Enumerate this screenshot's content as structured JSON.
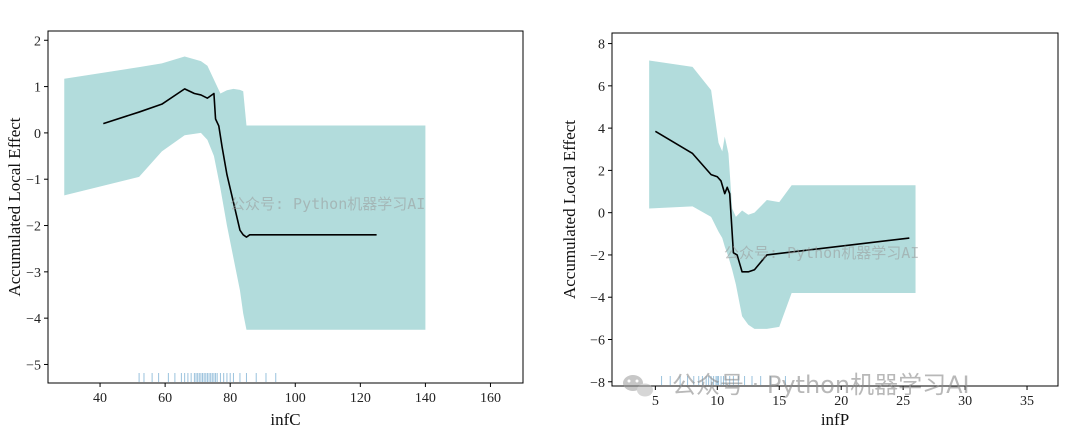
{
  "chart_data": [
    {
      "type": "line",
      "xlabel": "infC",
      "ylabel": "Accumulated Local Effect",
      "xlim": [
        24,
        170
      ],
      "ylim": [
        -5.4,
        2.2
      ],
      "xticks": [
        40,
        60,
        80,
        100,
        120,
        140,
        160
      ],
      "yticks": [
        2,
        1,
        0,
        -1,
        -2,
        -3,
        -4,
        -5
      ],
      "line_color": "#000000",
      "band_color": "#b2dcdc",
      "line": {
        "x": [
          41,
          52,
          59,
          66,
          69,
          71,
          73,
          75,
          75.5,
          76.5,
          77.5,
          79,
          81,
          83,
          84,
          85,
          86,
          125
        ],
        "y": [
          0.2,
          0.45,
          0.62,
          0.95,
          0.85,
          0.82,
          0.75,
          0.85,
          0.3,
          0.15,
          -0.3,
          -0.9,
          -1.5,
          -2.1,
          -2.2,
          -2.25,
          -2.2,
          -2.2
        ]
      },
      "band": {
        "x": [
          29,
          52,
          59,
          66,
          71,
          73,
          75,
          77,
          79,
          81,
          83,
          84,
          85,
          140
        ],
        "upper": [
          1.17,
          1.42,
          1.5,
          1.65,
          1.55,
          1.45,
          1.15,
          0.85,
          0.92,
          0.95,
          0.93,
          0.9,
          0.16,
          0.16
        ],
        "lower": [
          -1.35,
          -0.95,
          -0.4,
          -0.05,
          0.0,
          -0.15,
          -0.5,
          -1.2,
          -2.0,
          -2.7,
          -3.4,
          -3.9,
          -4.25,
          -4.25
        ]
      },
      "rug": [
        52,
        53.5,
        56,
        58,
        61,
        63,
        65,
        66,
        67,
        68,
        69,
        69.5,
        70,
        70.5,
        71,
        71.5,
        72,
        72.5,
        73,
        73.5,
        74,
        74.5,
        75,
        75.5,
        76,
        77,
        78,
        79,
        80,
        81,
        83,
        85,
        88,
        91,
        94
      ]
    },
    {
      "type": "line",
      "xlabel": "infP",
      "ylabel": "Accumulated Local Effect",
      "xlim": [
        1.5,
        37.5
      ],
      "ylim": [
        -8.2,
        8.5
      ],
      "xticks": [
        5,
        10,
        15,
        20,
        25,
        30,
        35
      ],
      "yticks": [
        8,
        6,
        4,
        2,
        0,
        -2,
        -4,
        -6,
        -8
      ],
      "line_color": "#000000",
      "band_color": "#b2dcdc",
      "line": {
        "x": [
          5,
          8,
          9.5,
          10,
          10.3,
          10.6,
          10.8,
          11.0,
          11.3,
          11.6,
          12.0,
          12.5,
          13.0,
          14.0,
          25.5
        ],
        "y": [
          3.85,
          2.8,
          1.8,
          1.7,
          1.5,
          0.9,
          1.2,
          0.9,
          -1.9,
          -2.0,
          -2.8,
          -2.8,
          -2.7,
          -2.0,
          -1.2
        ]
      },
      "band": {
        "x": [
          4.5,
          8,
          9.5,
          10.1,
          10.4,
          10.6,
          10.9,
          11.2,
          11.5,
          12.0,
          12.5,
          13.0,
          14.0,
          15.0,
          16.0,
          17.0,
          26.0
        ],
        "upper": [
          7.2,
          6.9,
          5.8,
          3.3,
          2.9,
          3.6,
          2.8,
          0.2,
          -0.2,
          0.1,
          -0.1,
          0.0,
          0.6,
          0.5,
          1.3,
          1.3,
          1.3
        ],
        "lower": [
          0.2,
          0.3,
          -0.2,
          -0.9,
          -1.2,
          -1.6,
          -2.1,
          -2.7,
          -3.4,
          -4.9,
          -5.3,
          -5.5,
          -5.5,
          -5.4,
          -3.8,
          -3.8,
          -3.8
        ]
      },
      "rug": [
        5.5,
        6.2,
        7.0,
        7.6,
        8.1,
        8.5,
        8.8,
        9.1,
        9.3,
        9.5,
        9.7,
        9.9,
        10.0,
        10.1,
        10.3,
        10.5,
        10.7,
        11.0,
        11.3,
        11.7,
        12.2,
        12.8,
        13.5,
        14.3,
        15.5
      ]
    }
  ],
  "watermarks": {
    "overlay": "公众号: Python机器学习AI",
    "footer": "公众号 · Python机器学习AI"
  }
}
